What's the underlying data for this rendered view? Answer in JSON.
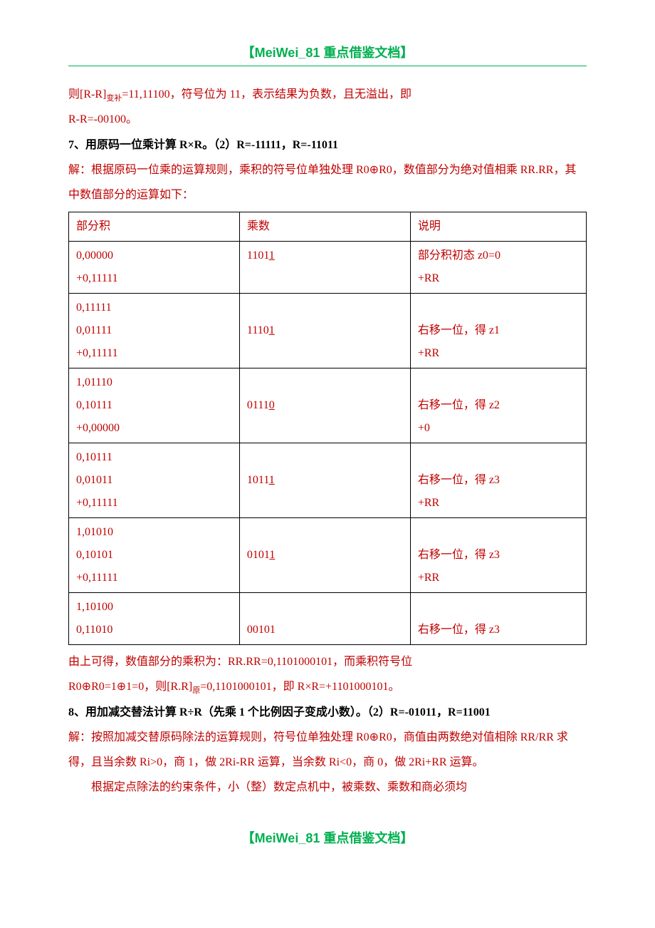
{
  "header": "【MeiWei_81 重点借鉴文档】",
  "footer": "【MeiWei_81 重点借鉴文档】",
  "para1_a": "则[R-R]",
  "para1_sub": "变补",
  "para1_b": "=11,11100，符号位为 11，表示结果为负数，且无溢出，即",
  "para2": "R-R=-00100。",
  "para3": "7、用原码一位乘计算 R×R。（2）R=-11111，R=-11011",
  "para4": "解：根据原码一位乘的运算规则，乘积的符号位单独处理 R0⊕R0，数值部分为绝对值相乘 RR.RR，其中数值部分的运算如下：",
  "table": {
    "headers": [
      "部分积",
      "乘数",
      "说明"
    ],
    "rows": [
      {
        "g": 1,
        "c1": [
          "0,00000",
          "+0,11111"
        ],
        "c2": [
          "1101",
          "1"
        ],
        "c3": [
          "部分积初态 z0=0",
          "+RR"
        ]
      },
      {
        "g": 2,
        "c1": [
          "0,11111",
          "0,01111",
          "+0,11111"
        ],
        "c2": [
          "",
          "1110",
          "1"
        ],
        "c3": [
          "",
          "右移一位，得 z1",
          "+RR"
        ]
      },
      {
        "g": 3,
        "c1": [
          "1,01110",
          "0,10111",
          "+0,00000"
        ],
        "c2": [
          "",
          "0111",
          "0"
        ],
        "c3": [
          "",
          "右移一位，得 z2",
          "+0"
        ]
      },
      {
        "g": 4,
        "c1": [
          "0,10111",
          "0,01011",
          "+0,11111"
        ],
        "c2": [
          "",
          "1011",
          "1"
        ],
        "c3": [
          "",
          "右移一位，得 z3",
          "+RR"
        ]
      },
      {
        "g": 5,
        "c1": [
          "1,01010",
          "0,10101",
          "+0,11111"
        ],
        "c2": [
          "",
          "0101",
          "1"
        ],
        "c3": [
          "",
          "右移一位，得 z3",
          "+RR"
        ]
      },
      {
        "g": 6,
        "c1": [
          "1,10100",
          "0,11010"
        ],
        "c2": [
          "",
          "00101"
        ],
        "c3": [
          "",
          "右移一位，得 z3"
        ]
      }
    ]
  },
  "para5_a": "由上可得，数值部分的乘积为：RR.RR=0,1101000101，而乘积符号位",
  "para5_b_a": "R0⊕R0=1⊕1=0，则[R.R]",
  "para5_b_sub": "原",
  "para5_b_b": "=0,1101000101，即 R×R=+1101000101。",
  "para6": "8、用加减交替法计算 R÷R（先乘 1 个比例因子变成小数）。（2）R=-01011，R=11001",
  "para7": "解：按照加减交替原码除法的运算规则，符号位单独处理 R0⊕R0，商值由两数绝对值相除 RR/RR 求得，且当余数 Ri>0，商 1，做 2Ri-RR 运算，当余数 Ri<0，商 0，做 2Ri+RR 运算。",
  "para8": "根据定点除法的约束条件，小（整）数定点机中，被乘数、乘数和商必须均"
}
